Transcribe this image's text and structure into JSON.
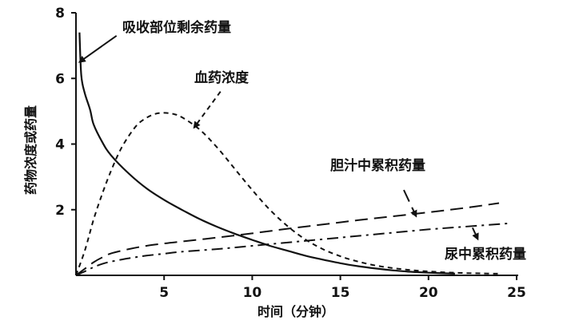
{
  "chart_data": {
    "type": "line",
    "title": "",
    "xlabel": "时间（分钟）",
    "ylabel": "药物浓度或药量",
    "xlim": [
      0,
      25
    ],
    "ylim": [
      0,
      8
    ],
    "x_ticks": [
      "5",
      "10",
      "15",
      "20",
      "25"
    ],
    "y_ticks": [
      "2",
      "4",
      "6",
      "8"
    ],
    "grid": false,
    "legend": "none (curves labelled by annotations with arrows)",
    "series": [
      {
        "name": "吸收部位剩余药量",
        "style": "solid",
        "x": [
          0.2,
          0.3,
          0.5,
          0.8,
          1,
          1.5,
          2,
          3,
          4,
          5,
          6,
          7,
          8,
          9,
          10,
          11,
          12,
          13,
          14,
          15,
          16,
          17,
          18,
          19,
          20,
          21.5
        ],
        "y": [
          7.4,
          6.1,
          5.55,
          5.05,
          4.6,
          4.05,
          3.65,
          3.1,
          2.65,
          2.3,
          2.0,
          1.72,
          1.48,
          1.27,
          1.08,
          0.9,
          0.75,
          0.6,
          0.48,
          0.37,
          0.28,
          0.21,
          0.15,
          0.11,
          0.08,
          0.05
        ]
      },
      {
        "name": "血药浓度",
        "style": "short-dash",
        "x": [
          0,
          0.5,
          1,
          1.5,
          2,
          2.5,
          3,
          3.5,
          4,
          4.5,
          5,
          5.5,
          6,
          7,
          8,
          9,
          10,
          11,
          12,
          13,
          14,
          15,
          16,
          17,
          18,
          19,
          20,
          21,
          22,
          23,
          24
        ],
        "y": [
          0,
          0.75,
          1.7,
          2.5,
          3.2,
          3.8,
          4.25,
          4.6,
          4.8,
          4.92,
          4.95,
          4.92,
          4.82,
          4.45,
          3.9,
          3.25,
          2.6,
          2.0,
          1.5,
          1.1,
          0.8,
          0.58,
          0.42,
          0.3,
          0.22,
          0.16,
          0.12,
          0.09,
          0.07,
          0.06,
          0.05
        ]
      },
      {
        "name": "胆汁中累积药量",
        "style": "long-dash",
        "x": [
          0,
          0.5,
          1,
          1.5,
          2,
          3,
          4,
          5,
          6,
          8,
          10,
          12,
          14,
          16,
          18,
          20,
          22,
          24
        ],
        "y": [
          0,
          0.2,
          0.4,
          0.55,
          0.67,
          0.8,
          0.9,
          0.97,
          1.03,
          1.15,
          1.28,
          1.42,
          1.55,
          1.68,
          1.8,
          1.92,
          2.05,
          2.2
        ]
      },
      {
        "name": "尿中累积药量",
        "style": "dash-dot",
        "x": [
          0,
          0.5,
          1,
          1.5,
          2,
          3,
          4,
          5,
          6,
          8,
          10,
          12,
          14,
          16,
          18,
          20,
          22,
          24.5
        ],
        "y": [
          0,
          0.12,
          0.25,
          0.35,
          0.42,
          0.52,
          0.6,
          0.66,
          0.72,
          0.8,
          0.9,
          1.0,
          1.1,
          1.2,
          1.3,
          1.4,
          1.48,
          1.58
        ]
      }
    ],
    "annotations": [
      {
        "text": "吸收部位剩余药量",
        "series": "吸收部位剩余药量",
        "arrow_style": "solid",
        "arrow_to": [
          0.2,
          6.5
        ],
        "arrow_from": [
          2.3,
          7.3
        ]
      },
      {
        "text": "血药浓度",
        "series": "血药浓度",
        "arrow_style": "short-dash",
        "arrow_to": [
          6.7,
          4.5
        ],
        "arrow_from": [
          8.2,
          5.6
        ]
      },
      {
        "text": "胆汁中累积药量",
        "series": "胆汁中累积药量",
        "arrow_style": "long-dash",
        "arrow_to": [
          19.3,
          1.8
        ],
        "arrow_from": [
          18.6,
          2.6
        ]
      },
      {
        "text": "尿中累积药量",
        "series": "尿中累积药量",
        "arrow_style": "dash-dot",
        "arrow_to": [
          22.8,
          1.1
        ],
        "arrow_from": [
          22.5,
          1.45
        ]
      }
    ]
  }
}
